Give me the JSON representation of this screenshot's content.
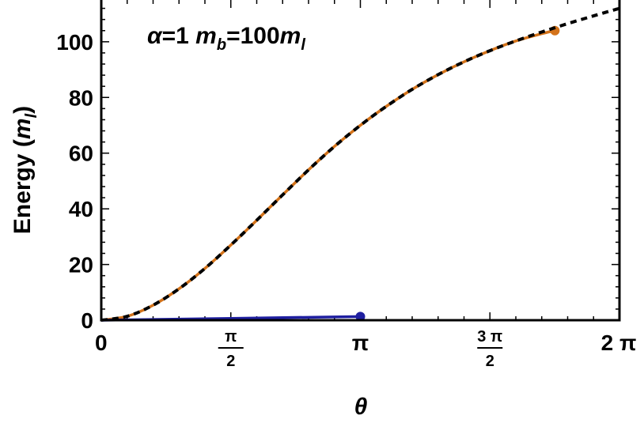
{
  "chart_data": {
    "type": "line",
    "annotation": {
      "alpha_sym": "α",
      "alpha_val": "=1 ",
      "m_sym": "m",
      "m_sub": "b",
      "eq": "=100",
      "m2_sym": "m",
      "m2_sub": "l"
    },
    "xlabel": "θ",
    "ylabel": {
      "text": "Energy (",
      "m": "m",
      "sub": "l",
      "close": ")"
    },
    "xlim": [
      0,
      6.2832
    ],
    "ylim": [
      0,
      115
    ],
    "x_ticks": [
      {
        "value": 0,
        "label": "0"
      },
      {
        "value": 1.5708,
        "num": "π",
        "den": "2"
      },
      {
        "value": 3.1416,
        "label": "π"
      },
      {
        "value": 4.7124,
        "num": "3 π",
        "den": "2"
      },
      {
        "value": 6.2832,
        "label": "2 π"
      }
    ],
    "y_ticks": [
      0,
      20,
      40,
      60,
      80,
      100
    ],
    "series": [
      {
        "style": "dashed",
        "color": "#000000",
        "x": [
          0,
          0.3142,
          0.6283,
          0.9425,
          1.2566,
          1.5708,
          1.885,
          2.1991,
          2.5133,
          2.8274,
          3.1416,
          3.4558,
          3.7699,
          4.0841,
          4.3982,
          4.7124,
          5.0265,
          5.3407,
          5.6549,
          5.969,
          6.2832
        ],
        "y": [
          0,
          1.4,
          5.4,
          11.3,
          18.6,
          27,
          35.9,
          45,
          54,
          62.4,
          70,
          76.8,
          82.9,
          88.2,
          92.8,
          96.8,
          100.3,
          103.5,
          106.5,
          109.3,
          112
        ]
      },
      {
        "style": "solid",
        "color": "#D4731A",
        "x": [
          0,
          0.3142,
          0.6283,
          0.9425,
          1.2566,
          1.5708,
          1.885,
          2.1991,
          2.5133,
          2.8274,
          3.1416,
          3.4558,
          3.7699,
          4.0841,
          4.3982,
          4.7124,
          5.0265,
          5.3407,
          5.5
        ],
        "y": [
          0,
          1.4,
          5.4,
          11.3,
          18.6,
          27,
          35.9,
          45,
          54,
          62.4,
          70,
          76.8,
          82.9,
          88.2,
          92.8,
          96.8,
          100.3,
          102.9,
          104
        ],
        "endpoint": {
          "x": 5.5,
          "y": 104
        }
      },
      {
        "style": "solid",
        "color": "#1F1FA0",
        "x": [
          0,
          3.1416
        ],
        "y": [
          0,
          1.3
        ],
        "endpoint": {
          "x": 3.1416,
          "y": 1.3
        }
      }
    ]
  }
}
